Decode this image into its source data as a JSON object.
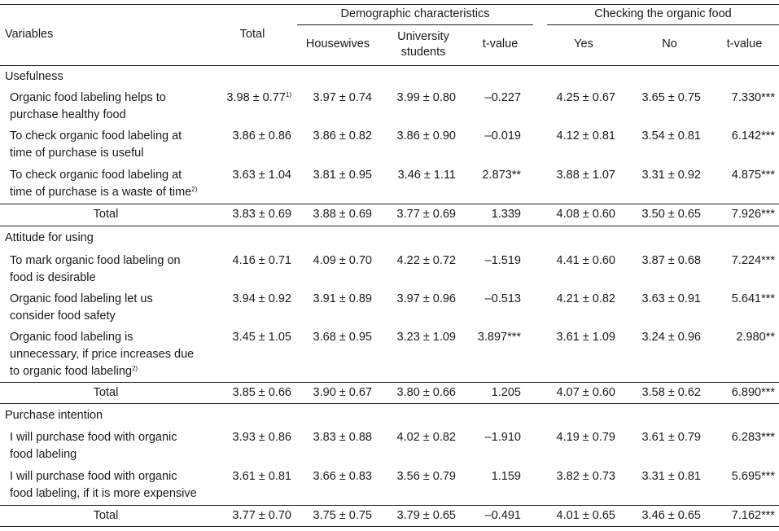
{
  "headers": {
    "variables": "Variables",
    "total": "Total",
    "demographic": "Demographic characteristics",
    "checking": "Checking the organic food",
    "housewives": "Housewives",
    "university_1": "University",
    "university_2": "students",
    "tvalue": "t-value",
    "yes": "Yes",
    "no": "No"
  },
  "sections": [
    {
      "title": "Usefulness",
      "rows": [
        {
          "label_lines": [
            "Organic food labeling helps to",
            "purchase healthy food"
          ],
          "label_sup": "",
          "total": "3.98 ± 0.77",
          "total_sup": "1)",
          "housewives": "3.97 ± 0.74",
          "students": "3.99 ± 0.80",
          "t1": "–0.227",
          "yes": "4.25 ± 0.67",
          "no": "3.65 ± 0.75",
          "t2": "7.330***"
        },
        {
          "label_lines": [
            "To check organic food labeling at",
            "time of purchase is useful"
          ],
          "label_sup": "",
          "total": "3.86 ± 0.86",
          "total_sup": "",
          "housewives": "3.86 ± 0.82",
          "students": "3.86 ± 0.90",
          "t1": "–0.019",
          "yes": "4.12 ± 0.81",
          "no": "3.54 ± 0.81",
          "t2": "6.142***"
        },
        {
          "label_lines": [
            "To check organic food labeling at",
            "time of purchase is a waste of time"
          ],
          "label_sup": "2)",
          "total": "3.63 ± 1.04",
          "total_sup": "",
          "housewives": "3.81 ± 0.95",
          "students": "3.46 ± 1.11",
          "t1": "2.873**",
          "yes": "3.88 ± 1.07",
          "no": "3.31 ± 0.92",
          "t2": "4.875***"
        }
      ],
      "total_row": {
        "label": "Total",
        "total": "3.83 ± 0.69",
        "housewives": "3.88 ± 0.69",
        "students": "3.77 ± 0.69",
        "t1": "1.339",
        "yes": "4.08 ± 0.60",
        "no": "3.50 ± 0.65",
        "t2": "7.926***"
      }
    },
    {
      "title": "Attitude for using",
      "rows": [
        {
          "label_lines": [
            "To mark organic food labeling on",
            "food is desirable"
          ],
          "label_sup": "",
          "total": "4.16 ± 0.71",
          "total_sup": "",
          "housewives": "4.09 ± 0.70",
          "students": "4.22 ± 0.72",
          "t1": "–1.519",
          "yes": "4.41 ± 0.60",
          "no": "3.87 ± 0.68",
          "t2": "7.224***"
        },
        {
          "label_lines": [
            "Organic food labeling let us",
            "consider food safety"
          ],
          "label_sup": "",
          "total": "3.94 ± 0.92",
          "total_sup": "",
          "housewives": "3.91 ± 0.89",
          "students": "3.97 ± 0.96",
          "t1": "–0.513",
          "yes": "4.21 ± 0.82",
          "no": "3.63 ± 0.91",
          "t2": "5.641***"
        },
        {
          "label_lines": [
            "Organic food labeling is",
            "unnecessary, if price increases due",
            "to organic food labeling"
          ],
          "label_sup": "2)",
          "total": "3.45 ± 1.05",
          "total_sup": "",
          "housewives": "3.68 ± 0.95",
          "students": "3.23 ± 1.09",
          "t1": "3.897***",
          "yes": "3.61 ± 1.09",
          "no": "3.24 ± 0.96",
          "t2": "2.980**"
        }
      ],
      "total_row": {
        "label": "Total",
        "total": "3.85 ± 0.66",
        "housewives": "3.90 ± 0.67",
        "students": "3.80 ± 0.66",
        "t1": "1.205",
        "yes": "4.07 ± 0.60",
        "no": "3.58 ± 0.62",
        "t2": "6.890***"
      }
    },
    {
      "title": "Purchase intention",
      "rows": [
        {
          "label_lines": [
            "I will purchase food with organic",
            "food labeling"
          ],
          "label_sup": "",
          "total": "3.93 ± 0.86",
          "total_sup": "",
          "housewives": "3.83 ± 0.88",
          "students": "4.02 ± 0.82",
          "t1": "–1.910",
          "yes": "4.19 ± 0.79",
          "no": "3.61 ± 0.79",
          "t2": "6.283***"
        },
        {
          "label_lines": [
            "I will purchase food with organic",
            "food labeling, if it is more expensive"
          ],
          "label_sup": "",
          "total": "3.61 ± 0.81",
          "total_sup": "",
          "housewives": "3.66 ± 0.83",
          "students": "3.56 ± 0.79",
          "t1": "1.159",
          "yes": "3.82 ± 0.73",
          "no": "3.31 ± 0.81",
          "t2": "5.695***"
        }
      ],
      "total_row": {
        "label": "Total",
        "total": "3.77 ± 0.70",
        "housewives": "3.75 ± 0.75",
        "students": "3.79 ± 0.65",
        "t1": "–0.491",
        "yes": "4.01 ± 0.65",
        "no": "3.46 ± 0.65",
        "t2": "7.162***"
      }
    }
  ]
}
